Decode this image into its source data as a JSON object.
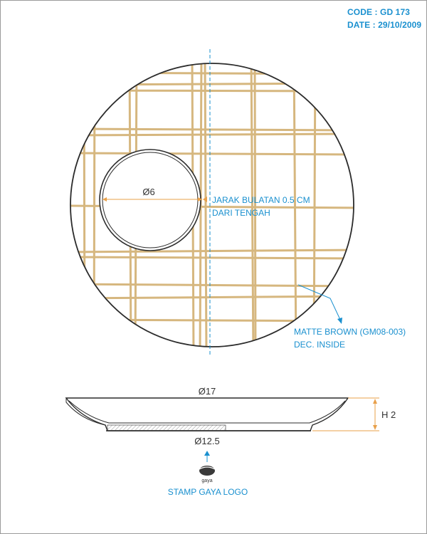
{
  "header": {
    "code": "CODE : GD 173",
    "date": "DATE : 29/10/2009"
  },
  "top_view": {
    "inner_diameter": "Ø6",
    "offset_note_line1": "JARAK BULATAN 0.5 CM",
    "offset_note_line2": "DARI TENGAH",
    "decoration_line1": "MATTE BROWN (GM08-003)",
    "decoration_line2": "DEC. INSIDE"
  },
  "side_view": {
    "outer_diameter": "Ø17",
    "base_diameter": "Ø12.5",
    "height": "H 2"
  },
  "stamp": {
    "logo_text": "gaya",
    "label": "STAMP GAYA LOGO"
  },
  "colors": {
    "annotation_blue": "#1a90cf",
    "plaid_gold": "#d6b77f",
    "dimension_orange": "#e8a04a",
    "outline": "#2b2b2b"
  }
}
